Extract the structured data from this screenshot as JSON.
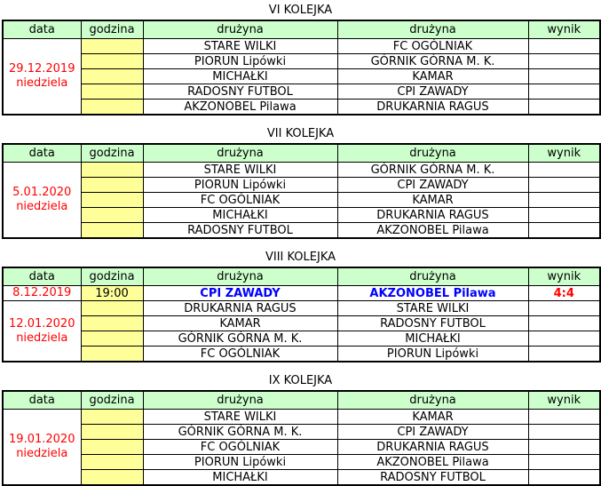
{
  "styles": {
    "header_bg": "#ccffcc",
    "time_bg": "#ffff99",
    "border_color": "#000000",
    "date_text_color": "#ff0000",
    "team_text_color": "#000000",
    "highlight_team_color": "#0000ff",
    "score_text_color": "#ff0000",
    "page_bg": "#ffffff"
  },
  "column_headers": [
    "data",
    "godzina",
    "drużyna",
    "drużyna",
    "wynik"
  ],
  "rounds": [
    {
      "title": "VI KOLEJKA",
      "date_groups": [
        {
          "date": "29.12.2019",
          "day": "niedziela",
          "row_span": 5
        }
      ],
      "matches": [
        {
          "time": "",
          "home": "STARE WILKI",
          "away": "FC OGÓLNIAK",
          "score": "",
          "highlight": false
        },
        {
          "time": "",
          "home": "PIORUN Lipówki",
          "away": "GÓRNIK GÓRNA M. K.",
          "score": "",
          "highlight": false
        },
        {
          "time": "",
          "home": "MICHAŁKI",
          "away": "KAMAR",
          "score": "",
          "highlight": false
        },
        {
          "time": "",
          "home": "RADOSNY FUTBOL",
          "away": "CPI ZAWADY",
          "score": "",
          "highlight": false
        },
        {
          "time": "",
          "home": "AKZONOBEL Pilawa",
          "away": "DRUKARNIA RAGUS",
          "score": "",
          "highlight": false
        }
      ]
    },
    {
      "title": "VII KOLEJKA",
      "date_groups": [
        {
          "date": "5.01.2020",
          "day": "niedziela",
          "row_span": 5
        }
      ],
      "matches": [
        {
          "time": "",
          "home": "STARE WILKI",
          "away": "GÓRNIK GÓRNA M. K.",
          "score": "",
          "highlight": false
        },
        {
          "time": "",
          "home": "PIORUN Lipówki",
          "away": "CPI ZAWADY",
          "score": "",
          "highlight": false
        },
        {
          "time": "",
          "home": "FC OGÓLNIAK",
          "away": "KAMAR",
          "score": "",
          "highlight": false
        },
        {
          "time": "",
          "home": "MICHAŁKI",
          "away": "DRUKARNIA RAGUS",
          "score": "",
          "highlight": false
        },
        {
          "time": "",
          "home": "RADOSNY FUTBOL",
          "away": "AKZONOBEL Pilawa",
          "score": "",
          "highlight": false
        }
      ]
    },
    {
      "title": "VIII KOLEJKA",
      "date_groups": [
        {
          "date": "8.12.2019",
          "day": "",
          "row_span": 1
        },
        {
          "date": "12.01.2020",
          "day": "niedziela",
          "row_span": 4
        }
      ],
      "matches": [
        {
          "time": "19:00",
          "home": "CPI ZAWADY",
          "away": "AKZONOBEL Pilawa",
          "score": "4:4",
          "highlight": true
        },
        {
          "time": "",
          "home": "DRUKARNIA RAGUS",
          "away": "STARE WILKI",
          "score": "",
          "highlight": false
        },
        {
          "time": "",
          "home": "KAMAR",
          "away": "RADOSNY FUTBOL",
          "score": "",
          "highlight": false
        },
        {
          "time": "",
          "home": "GÓRNIK GÓRNA M. K.",
          "away": "MICHAŁKI",
          "score": "",
          "highlight": false
        },
        {
          "time": "",
          "home": "FC OGÓLNIAK",
          "away": "PIORUN Lipówki",
          "score": "",
          "highlight": false
        }
      ]
    },
    {
      "title": "IX KOLEJKA",
      "date_groups": [
        {
          "date": "19.01.2020",
          "day": "niedziela",
          "row_span": 5
        }
      ],
      "matches": [
        {
          "time": "",
          "home": "STARE WILKI",
          "away": "KAMAR",
          "score": "",
          "highlight": false
        },
        {
          "time": "",
          "home": "GÓRNIK GÓRNA M. K.",
          "away": "CPI ZAWADY",
          "score": "",
          "highlight": false
        },
        {
          "time": "",
          "home": "FC OGÓLNIAK",
          "away": "DRUKARNIA RAGUS",
          "score": "",
          "highlight": false
        },
        {
          "time": "",
          "home": "PIORUN Lipówki",
          "away": "AKZONOBEL Pilawa",
          "score": "",
          "highlight": false
        },
        {
          "time": "",
          "home": "MICHAŁKI",
          "away": "RADOSNY FUTBOL",
          "score": "",
          "highlight": false
        }
      ]
    }
  ]
}
